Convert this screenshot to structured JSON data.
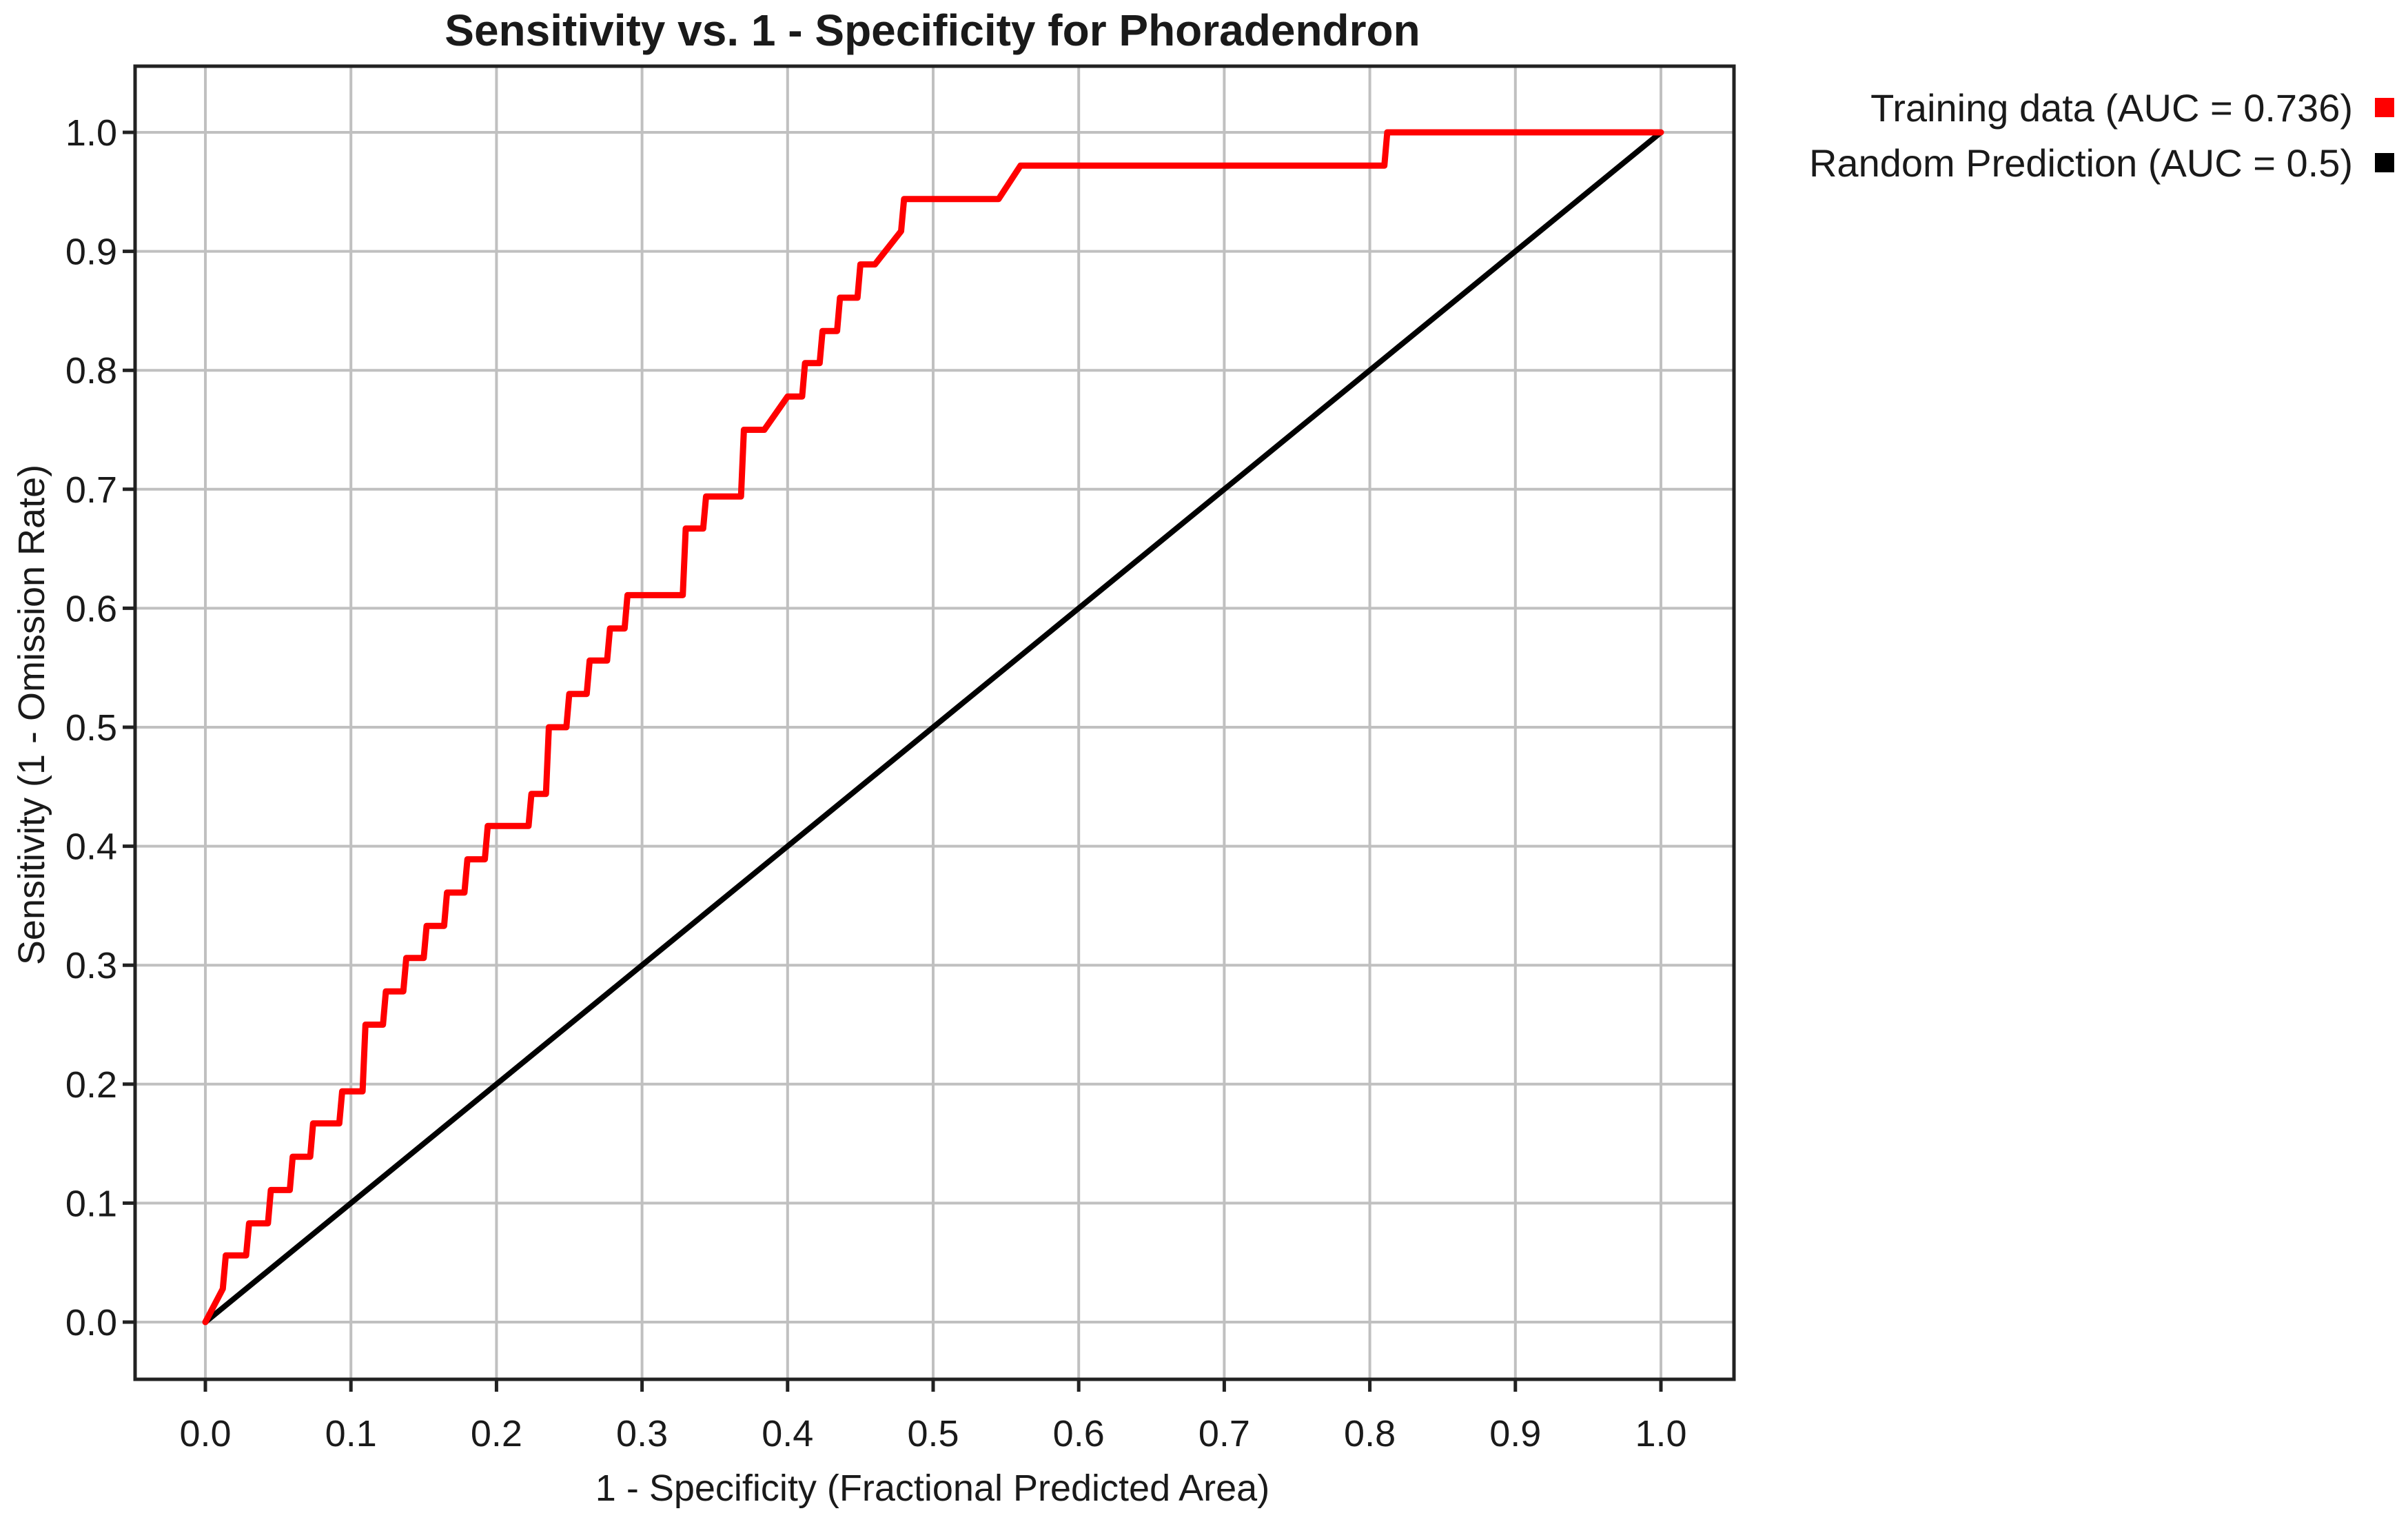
{
  "chart_data": {
    "type": "line",
    "title": "Sensitivity vs. 1 - Specificity for Phoradendron",
    "xlabel": "1 - Specificity  (Fractional Predicted Area)",
    "ylabel": "Sensitivity  (1 - Omission Rate)",
    "xlim": [
      0.0,
      1.0
    ],
    "ylim": [
      0.0,
      1.0
    ],
    "x_ticks": [
      "0.0",
      "0.1",
      "0.2",
      "0.3",
      "0.4",
      "0.5",
      "0.6",
      "0.7",
      "0.8",
      "0.9",
      "1.0"
    ],
    "y_ticks": [
      "0.0",
      "0.1",
      "0.2",
      "0.3",
      "0.4",
      "0.5",
      "0.6",
      "0.7",
      "0.8",
      "0.9",
      "1.0"
    ],
    "grid": true,
    "legend_position": "top-right, outside plot",
    "series": [
      {
        "name": "Training data (AUC = 0.736)",
        "color": "#ff0000",
        "x": [
          0.0,
          0.012,
          0.014,
          0.028,
          0.03,
          0.043,
          0.045,
          0.058,
          0.06,
          0.072,
          0.074,
          0.092,
          0.094,
          0.108,
          0.11,
          0.122,
          0.124,
          0.136,
          0.138,
          0.15,
          0.152,
          0.164,
          0.166,
          0.178,
          0.18,
          0.192,
          0.194,
          0.222,
          0.224,
          0.234,
          0.236,
          0.248,
          0.25,
          0.262,
          0.264,
          0.276,
          0.278,
          0.288,
          0.29,
          0.328,
          0.33,
          0.342,
          0.344,
          0.368,
          0.37,
          0.384,
          0.4,
          0.41,
          0.412,
          0.422,
          0.424,
          0.434,
          0.436,
          0.448,
          0.45,
          0.46,
          0.478,
          0.48,
          0.545,
          0.56,
          0.81,
          0.812,
          1.0
        ],
        "y": [
          0.0,
          0.028,
          0.056,
          0.056,
          0.083,
          0.083,
          0.111,
          0.111,
          0.139,
          0.139,
          0.167,
          0.167,
          0.194,
          0.194,
          0.25,
          0.25,
          0.278,
          0.278,
          0.306,
          0.306,
          0.333,
          0.333,
          0.361,
          0.361,
          0.389,
          0.389,
          0.417,
          0.417,
          0.444,
          0.444,
          0.5,
          0.5,
          0.528,
          0.528,
          0.556,
          0.556,
          0.583,
          0.583,
          0.611,
          0.611,
          0.667,
          0.667,
          0.694,
          0.694,
          0.75,
          0.75,
          0.778,
          0.778,
          0.806,
          0.806,
          0.833,
          0.833,
          0.861,
          0.861,
          0.889,
          0.889,
          0.917,
          0.944,
          0.944,
          0.972,
          0.972,
          1.0,
          1.0
        ]
      },
      {
        "name": "Random Prediction (AUC = 0.5)",
        "color": "#000000",
        "x": [
          0.0,
          1.0
        ],
        "y": [
          0.0,
          1.0
        ]
      }
    ]
  }
}
